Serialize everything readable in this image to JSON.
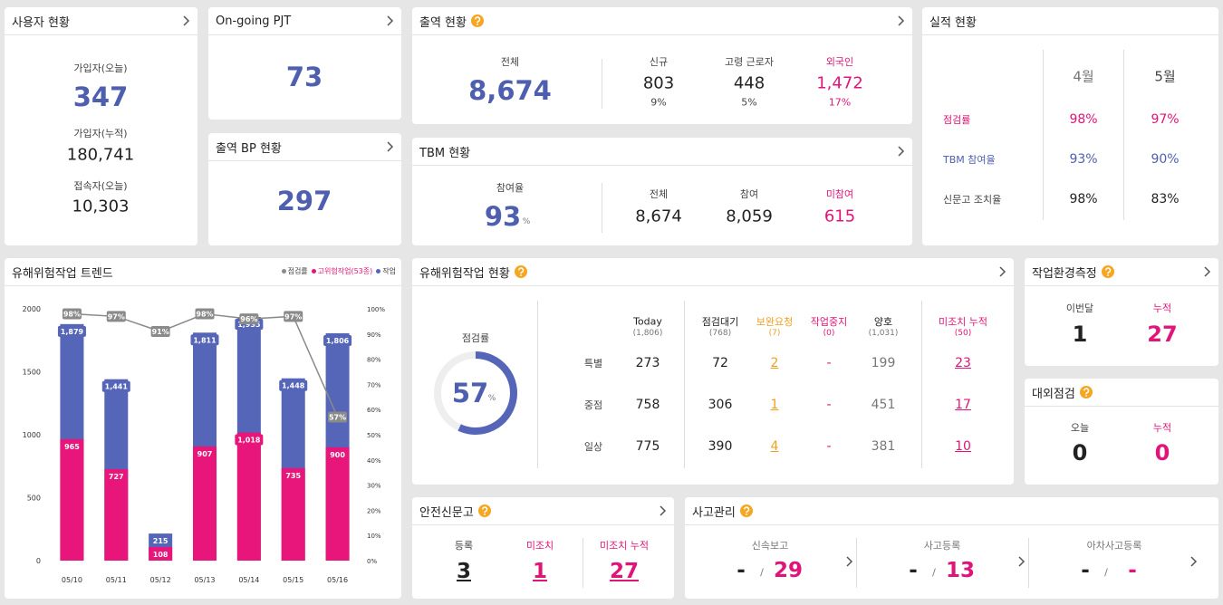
{
  "user_status": {
    "title": "사용자 현황",
    "items": [
      {
        "label": "가입자(오늘)",
        "value": "347"
      },
      {
        "label": "가입자(누적)",
        "value": "180,741"
      },
      {
        "label": "접속자(오늘)",
        "value": "10,303"
      }
    ]
  },
  "ongoing_pjt": {
    "title": "On-going PJT",
    "value": "73"
  },
  "bp_status": {
    "title": "출역 BP 현황",
    "value": "297"
  },
  "attendance": {
    "title": "출역 현황",
    "total": {
      "label": "전체",
      "value": "8,674"
    },
    "items": [
      {
        "label": "신규",
        "value": "803",
        "pct": "9%"
      },
      {
        "label": "고령 근로자",
        "value": "448",
        "pct": "5%"
      },
      {
        "label": "외국인",
        "value": "1,472",
        "pct": "17%"
      }
    ]
  },
  "tbm": {
    "title": "TBM 현황",
    "rate": {
      "label": "참여율",
      "value": "93",
      "unit": "%"
    },
    "items": [
      {
        "label": "전체",
        "value": "8,674"
      },
      {
        "label": "참여",
        "value": "8,059"
      },
      {
        "label": "미참여",
        "value": "615"
      }
    ]
  },
  "performance": {
    "title": "실적 현황",
    "columns": [
      "4월",
      "5월"
    ],
    "rows": [
      [
        "점검률",
        "98%",
        "97%"
      ],
      [
        "TBM 참여율",
        "93%",
        "90%"
      ],
      [
        "신문고 조치율",
        "98%",
        "83%"
      ]
    ]
  },
  "chart_data": {
    "type": "bar",
    "title": "유해위험작업 트렌드",
    "categories": [
      "05/10",
      "05/11",
      "05/12",
      "05/13",
      "05/14",
      "05/15",
      "05/16"
    ],
    "series": [
      {
        "name": "점검률",
        "type": "line",
        "axis": "y2",
        "color": "#8a8a8a",
        "values": [
          98,
          97,
          91,
          98,
          96,
          97,
          57
        ],
        "value_labels": [
          "98%",
          "97%",
          "91%",
          "98%",
          "96%",
          "97%",
          "57%"
        ]
      },
      {
        "name": "고위험작업(53종)",
        "color": "#e8157a",
        "values": [
          965,
          727,
          108,
          907,
          1018,
          735,
          900
        ],
        "value_labels": [
          "965",
          "727",
          "108",
          "907",
          "1,018",
          "735",
          "900"
        ]
      },
      {
        "name": "작업",
        "color": "#5565b8",
        "values": [
          1879,
          1441,
          215,
          1811,
          1935,
          1448,
          1806
        ],
        "value_labels": [
          "1,879",
          "1,441",
          "215",
          "1,811",
          "1,935",
          "1,448",
          "1,806"
        ]
      }
    ],
    "ylim": [
      0,
      2000
    ],
    "yticks": [
      0,
      500,
      1000,
      1500,
      2000
    ],
    "y2lim": [
      0,
      100
    ],
    "y2ticks": [
      {
        "value": 0,
        "label": "0%"
      },
      {
        "value": 10,
        "label": "10%"
      },
      {
        "value": 20,
        "label": "20%"
      },
      {
        "value": 30,
        "label": "30%"
      },
      {
        "value": 40,
        "label": "40%"
      },
      {
        "value": 50,
        "label": "50%"
      },
      {
        "value": 60,
        "label": "60%"
      },
      {
        "value": 70,
        "label": "70%"
      },
      {
        "value": 80,
        "label": "80%"
      },
      {
        "value": 90,
        "label": "90%"
      },
      {
        "value": 100,
        "label": "100%"
      }
    ],
    "grid": false,
    "legend": "top-right"
  },
  "hazard_status": {
    "title": "유해위험작업 현황",
    "gauge": {
      "label": "점검률",
      "value": 57,
      "unit": "%"
    },
    "columns": [
      {
        "label": "Today",
        "sub": "(1,806)"
      },
      {
        "label": "점검대기",
        "sub": "(768)"
      },
      {
        "label": "보완요청",
        "sub": "(7)"
      },
      {
        "label": "작업중지",
        "sub": "(0)"
      },
      {
        "label": "양호",
        "sub": "(1,031)"
      },
      {
        "label": "미조치 누적",
        "sub": "(50)"
      }
    ],
    "rows": [
      [
        "특별",
        "273",
        "72",
        "2",
        "-",
        "199",
        "23"
      ],
      [
        "중점",
        "758",
        "306",
        "1",
        "-",
        "451",
        "17"
      ],
      [
        "일상",
        "775",
        "390",
        "4",
        "-",
        "381",
        "10"
      ]
    ]
  },
  "work_env": {
    "title": "작업환경측정",
    "items": [
      {
        "label": "이번달",
        "value": "1"
      },
      {
        "label": "누적",
        "value": "27"
      }
    ]
  },
  "external": {
    "title": "대외점검",
    "items": [
      {
        "label": "오늘",
        "value": "0"
      },
      {
        "label": "누적",
        "value": "0"
      }
    ]
  },
  "sinmungo": {
    "title": "안전신문고",
    "items": [
      {
        "label": "등록",
        "value": "3"
      },
      {
        "label": "미조치",
        "value": "1"
      },
      {
        "label": "미조치 누적",
        "value": "27"
      }
    ]
  },
  "accident": {
    "title": "사고관리",
    "separator": "/",
    "items": [
      {
        "label": "신속보고",
        "left": "-",
        "right": "29"
      },
      {
        "label": "사고등록",
        "left": "-",
        "right": "13"
      },
      {
        "label": "아차사고등록",
        "left": "-",
        "right": "-"
      }
    ]
  }
}
